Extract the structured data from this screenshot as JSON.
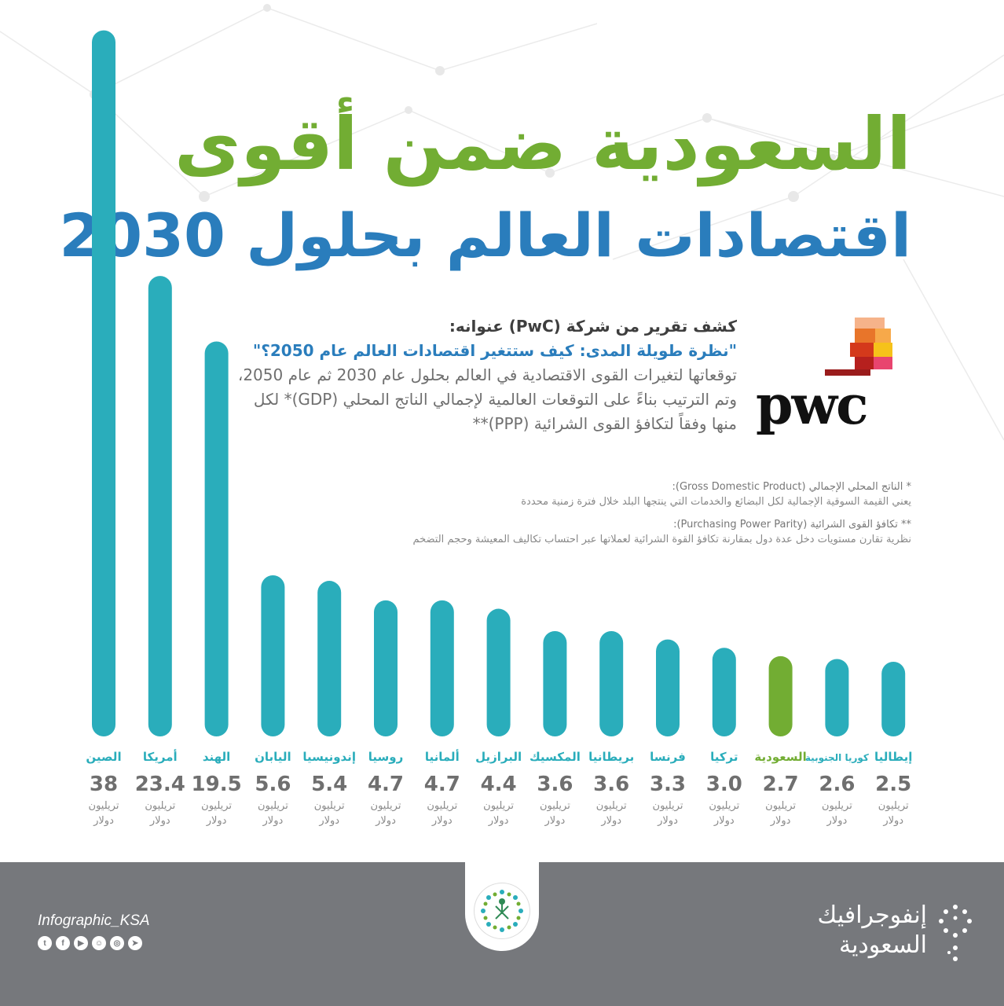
{
  "title_line1": "السعودية ضمن أقوى",
  "title_line2": "اقتصادات العالم بحلول 2030",
  "intro": {
    "heading": "كشف تقرير من شركة (PwC) عنوانه:",
    "subheading": "\"نظرة طويلة المدى: كيف ستتغير اقتصادات العالم عام 2050؟\"",
    "body": "توقعاتها لتغيرات القوى الاقتصادية في العالم بحلول عام 2030 ثم عام 2050، وتم الترتيب بناءً على التوقعات العالمية لإجمالي الناتج المحلي (GDP)* لكل منها وفقاً لتكافؤ القوى الشرائية (PPP)**"
  },
  "logo_text": "pwc",
  "notes": {
    "gdp_title": "* الناتج المحلي الإجمالي (Gross Domestic Product):",
    "gdp_text": "يعني القيمة السوقية الإجمالية لكل البضائع والخدمات التي ينتجها البلد خلال فترة زمنية محددة",
    "ppp_title": "** تكافؤ القوى الشرائية (Purchasing Power Parity):",
    "ppp_text": "نظرية تقارن مستويات دخل عدة دول بمقارنة تكافؤ القوة الشرائية لعملاتها عبر احتساب تكاليف المعيشة وحجم التضخم"
  },
  "colors": {
    "bar": "#2aadbb",
    "highlight": "#72ad33",
    "label": "#2aadbb",
    "value": "#6f6f6f",
    "footer": "#76787c"
  },
  "chart_data": {
    "type": "bar",
    "categories": [
      "الصين",
      "أمريكا",
      "الهند",
      "اليابان",
      "إندونيسيا",
      "روسيا",
      "ألمانيا",
      "البرازيل",
      "المكسيك",
      "بريطانيا",
      "فرنسا",
      "تركيا",
      "السعودية",
      "كوريا الجنوبية",
      "إيطاليا"
    ],
    "values": [
      38,
      23.4,
      19.5,
      5.6,
      5.4,
      4.7,
      4.7,
      4.4,
      3.6,
      3.6,
      3.3,
      3.0,
      2.7,
      2.6,
      2.5
    ],
    "value_labels": [
      "38",
      "23.4",
      "19.5",
      "5.6",
      "5.4",
      "4.7",
      "4.7",
      "4.4",
      "3.6",
      "3.6",
      "3.3",
      "3.0",
      "2.7",
      "2.6",
      "2.5"
    ],
    "unit_line1": "تريليون",
    "unit_line2": "دولار",
    "highlight_category": "السعودية",
    "scale": "non-linear (pictorial)"
  },
  "footer": {
    "handle": "Infographic_KSA",
    "social_icons": [
      "twitter-icon",
      "facebook-icon",
      "youtube-icon",
      "snapchat-icon",
      "instagram-icon",
      "telegram-icon"
    ],
    "brand_line1": "إنفوجرافيك",
    "brand_line2": "السعودية"
  }
}
